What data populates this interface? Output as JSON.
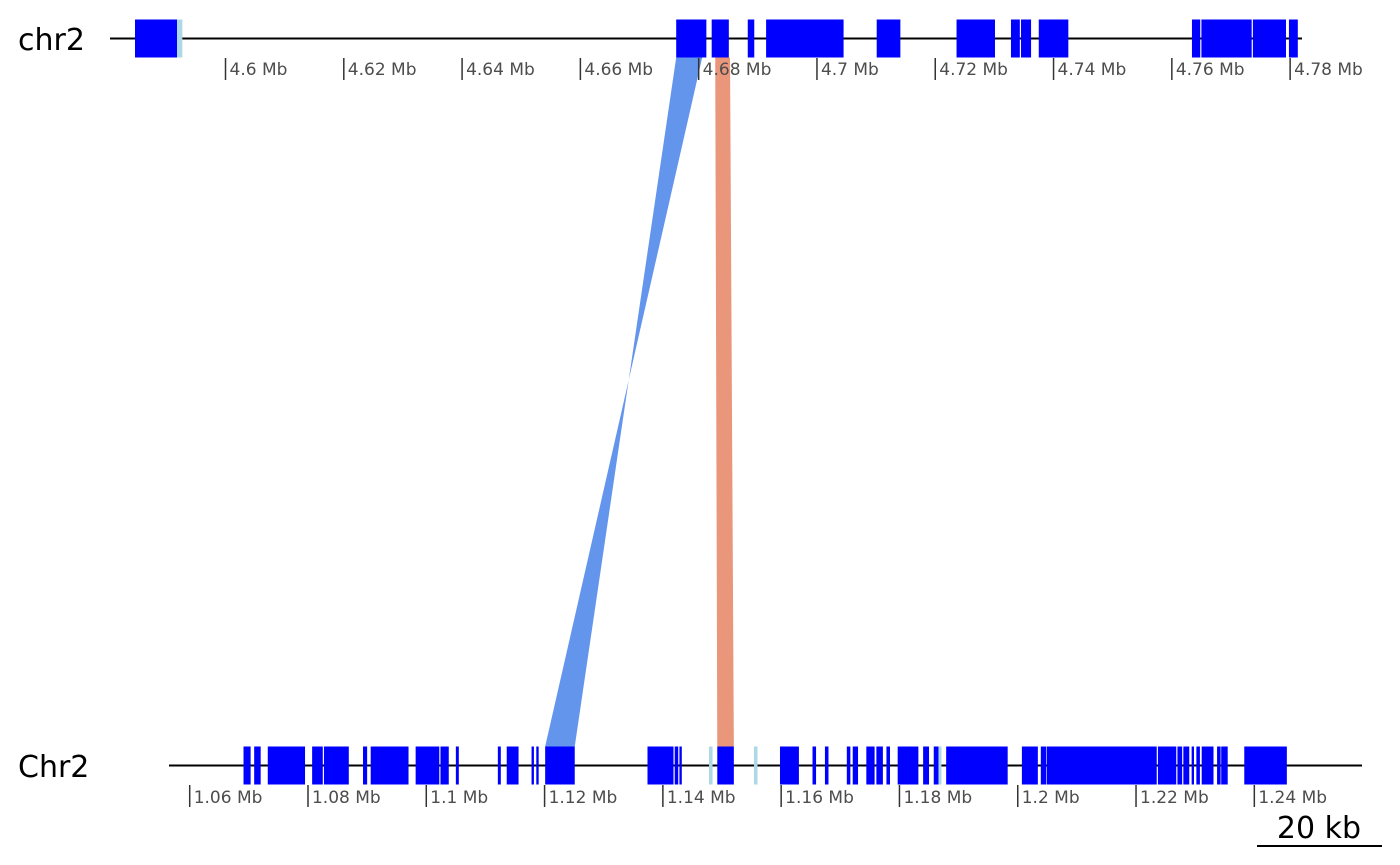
{
  "chart_data": {
    "type": "synteny",
    "colors": {
      "gene": "#0000ff",
      "gene_light": "#add8e6",
      "link_forward": "#6495ed",
      "link_reverse": "#e9967a",
      "backbone": "#000000",
      "tick_text": "#4d4d4d"
    },
    "sequences": [
      {
        "name": "chr2",
        "range_mb": [
          4.5825,
          4.7815
        ],
        "ticks": [
          {
            "value": 4.6,
            "label": "4.6 Mb"
          },
          {
            "value": 4.62,
            "label": "4.62 Mb"
          },
          {
            "value": 4.64,
            "label": "4.64 Mb"
          },
          {
            "value": 4.66,
            "label": "4.66 Mb"
          },
          {
            "value": 4.68,
            "label": "4.68 Mb"
          },
          {
            "value": 4.7,
            "label": "4.7 Mb"
          },
          {
            "value": 4.72,
            "label": "4.72 Mb"
          },
          {
            "value": 4.74,
            "label": "4.74 Mb"
          },
          {
            "value": 4.76,
            "label": "4.76 Mb"
          },
          {
            "value": 4.78,
            "label": "4.78 Mb"
          }
        ],
        "features": [
          {
            "start": 4.5847,
            "end": 4.5918,
            "color": "gene"
          },
          {
            "start": 4.5918,
            "end": 4.5927,
            "color": "gene_light"
          },
          {
            "start": 4.6762,
            "end": 4.6813,
            "color": "gene"
          },
          {
            "start": 4.6822,
            "end": 4.6851,
            "color": "gene"
          },
          {
            "start": 4.6883,
            "end": 4.6894,
            "color": "gene"
          },
          {
            "start": 4.6914,
            "end": 4.7045,
            "color": "gene"
          },
          {
            "start": 4.7101,
            "end": 4.7141,
            "color": "gene"
          },
          {
            "start": 4.7236,
            "end": 4.7301,
            "color": "gene"
          },
          {
            "start": 4.7328,
            "end": 4.7343,
            "color": "gene"
          },
          {
            "start": 4.7345,
            "end": 4.7362,
            "color": "gene"
          },
          {
            "start": 4.7375,
            "end": 4.7425,
            "color": "gene"
          },
          {
            "start": 4.7634,
            "end": 4.7648,
            "color": "gene"
          },
          {
            "start": 4.765,
            "end": 4.7735,
            "color": "gene"
          },
          {
            "start": 4.7737,
            "end": 4.7793,
            "color": "gene"
          },
          {
            "start": 4.7798,
            "end": 4.7813,
            "color": "gene"
          }
        ]
      },
      {
        "name": "Chr2",
        "range_mb": [
          1.0565,
          1.2555
        ],
        "ticks": [
          {
            "value": 1.06,
            "label": "1.06 Mb"
          },
          {
            "value": 1.08,
            "label": "1.08 Mb"
          },
          {
            "value": 1.1,
            "label": "1.1 Mb"
          },
          {
            "value": 1.12,
            "label": "1.12 Mb"
          },
          {
            "value": 1.14,
            "label": "1.14 Mb"
          },
          {
            "value": 1.16,
            "label": "1.16 Mb"
          },
          {
            "value": 1.18,
            "label": "1.18 Mb"
          },
          {
            "value": 1.2,
            "label": "1.2 Mb"
          },
          {
            "value": 1.22,
            "label": "1.22 Mb"
          },
          {
            "value": 1.24,
            "label": "1.24 Mb"
          }
        ],
        "features": [
          {
            "start": 1.0691,
            "end": 1.0703,
            "color": "gene"
          },
          {
            "start": 1.0709,
            "end": 1.072,
            "color": "gene"
          },
          {
            "start": 1.0732,
            "end": 1.0795,
            "color": "gene"
          },
          {
            "start": 1.0807,
            "end": 1.0825,
            "color": "gene"
          },
          {
            "start": 1.0827,
            "end": 1.0869,
            "color": "gene"
          },
          {
            "start": 1.0893,
            "end": 1.09,
            "color": "gene"
          },
          {
            "start": 1.0906,
            "end": 1.097,
            "color": "gene"
          },
          {
            "start": 1.0982,
            "end": 1.1022,
            "color": "gene"
          },
          {
            "start": 1.1024,
            "end": 1.1038,
            "color": "gene"
          },
          {
            "start": 1.105,
            "end": 1.1055,
            "color": "gene"
          },
          {
            "start": 1.1121,
            "end": 1.1126,
            "color": "gene"
          },
          {
            "start": 1.1136,
            "end": 1.1156,
            "color": "gene"
          },
          {
            "start": 1.1178,
            "end": 1.1182,
            "color": "gene"
          },
          {
            "start": 1.1186,
            "end": 1.119,
            "color": "gene"
          },
          {
            "start": 1.1201,
            "end": 1.1251,
            "color": "gene"
          },
          {
            "start": 1.1374,
            "end": 1.1418,
            "color": "gene"
          },
          {
            "start": 1.142,
            "end": 1.1426,
            "color": "gene"
          },
          {
            "start": 1.1428,
            "end": 1.1432,
            "color": "gene"
          },
          {
            "start": 1.1478,
            "end": 1.1484,
            "color": "gene_light"
          },
          {
            "start": 1.1492,
            "end": 1.152,
            "color": "gene"
          },
          {
            "start": 1.1554,
            "end": 1.156,
            "color": "gene_light"
          },
          {
            "start": 1.1598,
            "end": 1.163,
            "color": "gene"
          },
          {
            "start": 1.1653,
            "end": 1.1659,
            "color": "gene"
          },
          {
            "start": 1.1674,
            "end": 1.168,
            "color": "gene"
          },
          {
            "start": 1.1711,
            "end": 1.1717,
            "color": "gene"
          },
          {
            "start": 1.1721,
            "end": 1.173,
            "color": "gene"
          },
          {
            "start": 1.1744,
            "end": 1.1758,
            "color": "gene"
          },
          {
            "start": 1.1761,
            "end": 1.1772,
            "color": "gene"
          },
          {
            "start": 1.1778,
            "end": 1.1784,
            "color": "gene"
          },
          {
            "start": 1.1797,
            "end": 1.1832,
            "color": "gene"
          },
          {
            "start": 1.184,
            "end": 1.185,
            "color": "gene"
          },
          {
            "start": 1.1858,
            "end": 1.1866,
            "color": "gene"
          },
          {
            "start": 1.1866,
            "end": 1.1871,
            "color": "gene_light"
          },
          {
            "start": 1.1879,
            "end": 1.1983,
            "color": "gene"
          },
          {
            "start": 1.2007,
            "end": 1.2034,
            "color": "gene"
          },
          {
            "start": 1.2039,
            "end": 1.2048,
            "color": "gene"
          },
          {
            "start": 1.2049,
            "end": 1.2235,
            "color": "gene"
          },
          {
            "start": 1.2237,
            "end": 1.2268,
            "color": "gene"
          },
          {
            "start": 1.227,
            "end": 1.2278,
            "color": "gene"
          },
          {
            "start": 1.228,
            "end": 1.229,
            "color": "gene"
          },
          {
            "start": 1.2294,
            "end": 1.2298,
            "color": "gene"
          },
          {
            "start": 1.2302,
            "end": 1.2308,
            "color": "gene"
          },
          {
            "start": 1.2311,
            "end": 1.2331,
            "color": "gene"
          },
          {
            "start": 1.2337,
            "end": 1.2343,
            "color": "gene"
          },
          {
            "start": 1.2344,
            "end": 1.2355,
            "color": "gene"
          },
          {
            "start": 1.2383,
            "end": 1.2455,
            "color": "gene"
          }
        ]
      }
    ],
    "links": [
      {
        "top_start": 4.6762,
        "top_end": 4.6806,
        "bottom_start": 1.1201,
        "bottom_end": 1.1251,
        "orientation": "reverse",
        "color": "link_forward"
      },
      {
        "top_start": 4.6828,
        "top_end": 4.6853,
        "bottom_start": 1.1492,
        "bottom_end": 1.152,
        "orientation": "same",
        "color": "link_reverse"
      }
    ],
    "scale_bar": {
      "length_kb": 20,
      "label": "20 kb"
    }
  }
}
